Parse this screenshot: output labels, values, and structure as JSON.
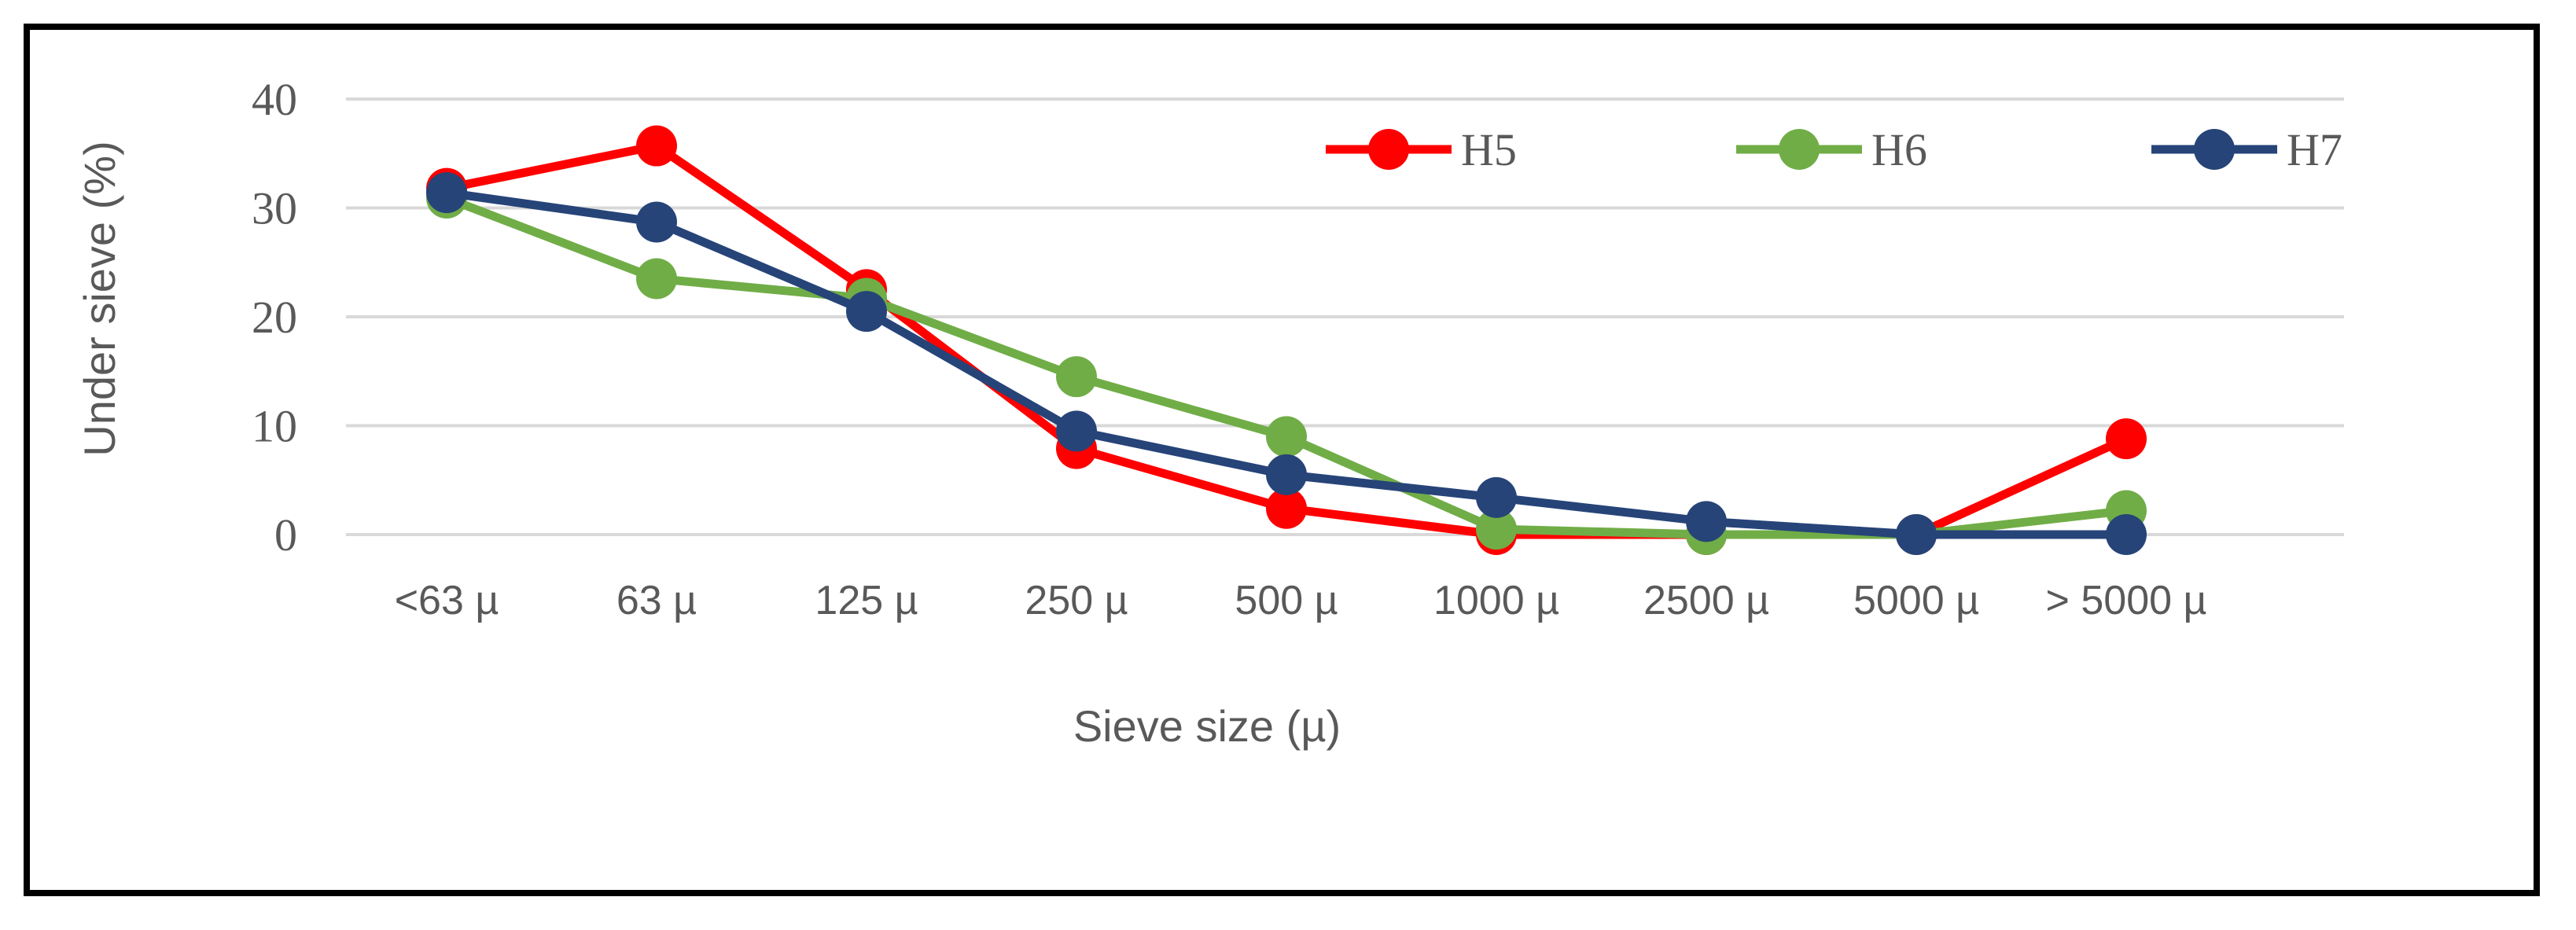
{
  "chart_data": {
    "type": "line",
    "categories": [
      "<63 µ",
      "63 µ",
      "125 µ",
      "250 µ",
      "500 µ",
      "1000 µ",
      "2500 µ",
      "5000 µ",
      "> 5000 µ"
    ],
    "series": [
      {
        "name": "H5",
        "color": "#ff0000",
        "values": [
          31.8,
          35.7,
          22.5,
          7.9,
          2.4,
          0.0,
          0.0,
          0.0,
          8.8
        ]
      },
      {
        "name": "H6",
        "color": "#70ad47",
        "values": [
          30.9,
          23.5,
          21.7,
          14.5,
          9.0,
          0.5,
          0.0,
          0.0,
          2.2
        ]
      },
      {
        "name": "H7",
        "color": "#264478",
        "values": [
          31.4,
          28.7,
          20.5,
          9.5,
          5.5,
          3.4,
          1.2,
          0.0,
          0.0
        ]
      }
    ],
    "yticks": [
      "0",
      "10",
      "20",
      "30",
      "40"
    ],
    "ylim": [
      0,
      40
    ],
    "xlabel": "Sieve size (µ)",
    "ylabel": "Under sieve (%)",
    "grid": true,
    "legend_position": "top-right"
  }
}
